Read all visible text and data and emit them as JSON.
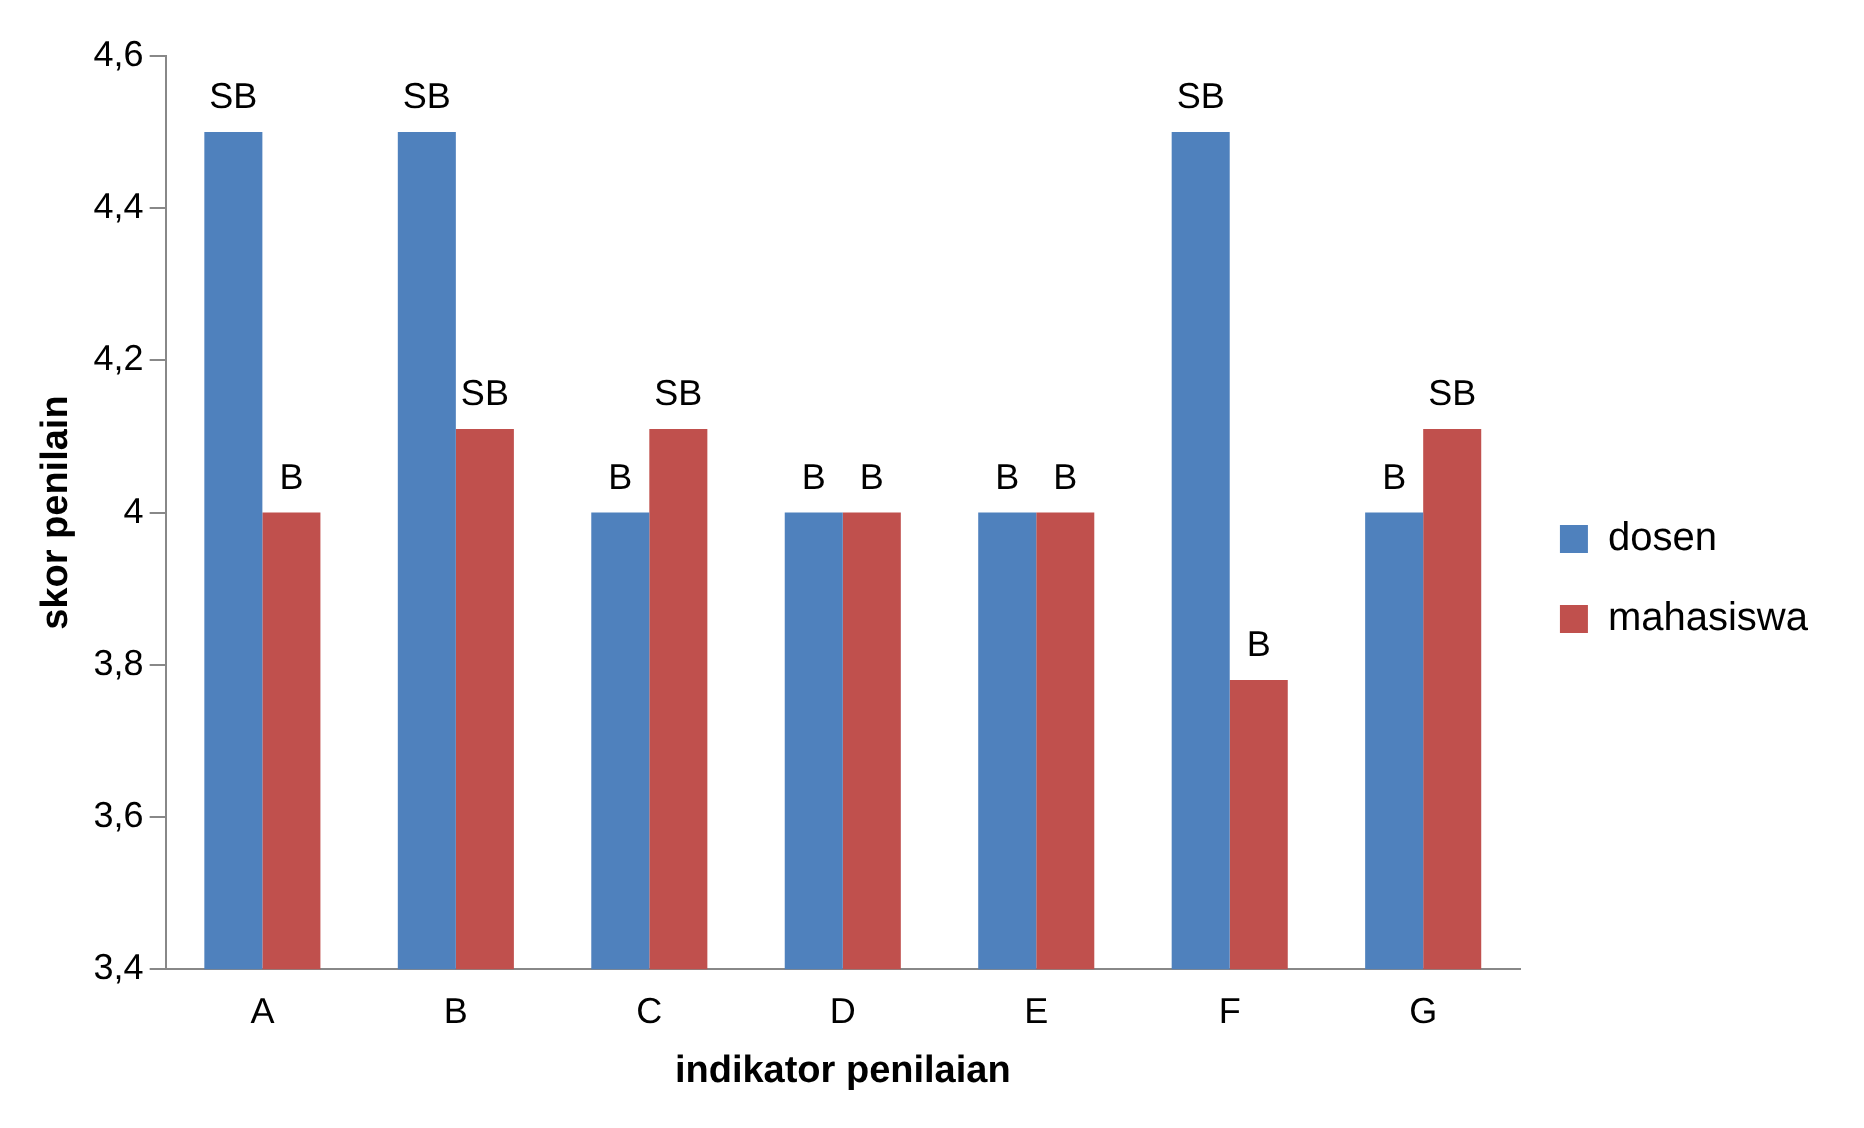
{
  "chart_data": {
    "type": "bar",
    "xlabel": "indikator penilaian",
    "ylabel": "skor penilain",
    "categories": [
      "A",
      "B",
      "C",
      "D",
      "E",
      "F",
      "G"
    ],
    "series": [
      {
        "name": "dosen",
        "color": "#4f81bd",
        "values": [
          4.5,
          4.5,
          4.0,
          4.0,
          4.0,
          4.5,
          4.0
        ],
        "value_labels": [
          "SB",
          "SB",
          "B",
          "B",
          "B",
          "SB",
          "B"
        ]
      },
      {
        "name": "mahasiswa",
        "color": "#c0504d",
        "values": [
          4.0,
          4.11,
          4.11,
          4.0,
          4.0,
          3.78,
          4.11
        ],
        "value_labels": [
          "B",
          "SB",
          "SB",
          "B",
          "B",
          "B",
          "SB"
        ]
      }
    ],
    "ylim": [
      3.4,
      4.6
    ],
    "yticks": [
      {
        "value": 3.4,
        "label": "3,4"
      },
      {
        "value": 3.6,
        "label": "3,6"
      },
      {
        "value": 3.8,
        "label": "3,8"
      },
      4,
      {
        "value": 4.2,
        "label": "4,2"
      },
      {
        "value": 4.4,
        "label": "4,4"
      },
      {
        "value": 4.6,
        "label": "4,6"
      }
    ],
    "grid": false,
    "legend": "right"
  }
}
